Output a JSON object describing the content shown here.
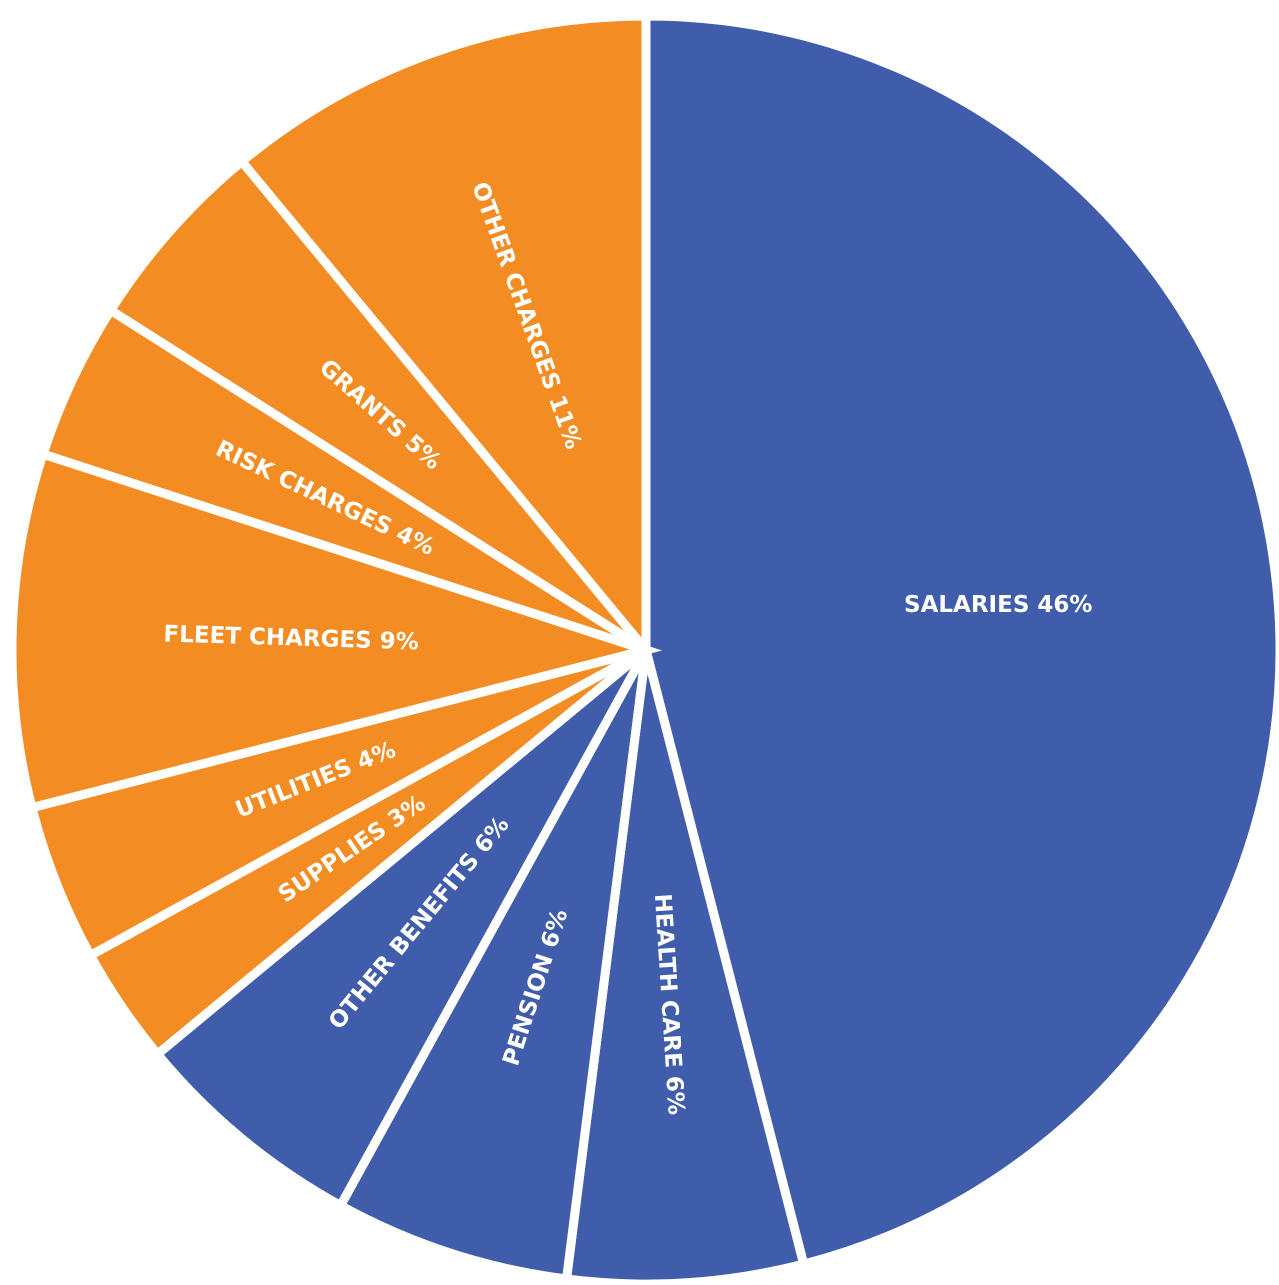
{
  "chart_data": {
    "type": "pie",
    "title": "",
    "start_angle_deg": 0,
    "direction": "clockwise",
    "colors": {
      "blue": "#405DAB",
      "orange": "#F38C22"
    },
    "slices": [
      {
        "label": "SALARIES 46%",
        "category": "SALARIES",
        "value": 46,
        "color": "#405DAB"
      },
      {
        "label": "HEALTH CARE 6%",
        "category": "HEALTH CARE",
        "value": 6,
        "color": "#405DAB"
      },
      {
        "label": "PENSION 6%",
        "category": "PENSION",
        "value": 6,
        "color": "#405DAB"
      },
      {
        "label": "OTHER BENEFITS 6%",
        "category": "OTHER BENEFITS",
        "value": 6,
        "color": "#405DAB"
      },
      {
        "label": "SUPPLIES 3%",
        "category": "SUPPLIES",
        "value": 3,
        "color": "#F38C22"
      },
      {
        "label": "UTILITIES 4%",
        "category": "UTILITIES",
        "value": 4,
        "color": "#F38C22"
      },
      {
        "label": "FLEET CHARGES 9%",
        "category": "FLEET CHARGES",
        "value": 9,
        "color": "#F38C22"
      },
      {
        "label": "RISK CHARGES 4%",
        "category": "RISK CHARGES",
        "value": 4,
        "color": "#F38C22"
      },
      {
        "label": "GRANTS 5%",
        "category": "GRANTS",
        "value": 5,
        "color": "#F38C22"
      },
      {
        "label": "OTHER CHARGES 11%",
        "category": "OTHER CHARGES",
        "value": 11,
        "color": "#F38C22"
      }
    ]
  }
}
